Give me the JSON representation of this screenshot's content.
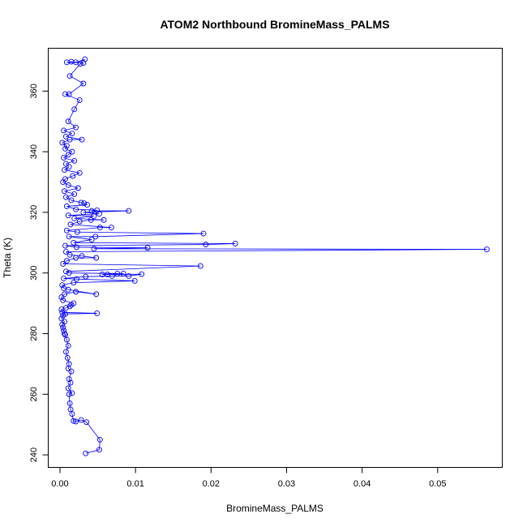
{
  "chart_data": {
    "type": "line",
    "title": "ATOM2 Northbound BromineMass_PALMS",
    "xlabel": "BromineMass_PALMS",
    "ylabel": "Theta (K)",
    "xlim": [
      -0.0015,
      0.0585
    ],
    "ylim": [
      236,
      374
    ],
    "x_ticks": [
      0.0,
      0.01,
      0.02,
      0.03,
      0.04,
      0.05
    ],
    "x_tick_labels": [
      "0.00",
      "0.01",
      "0.02",
      "0.03",
      "0.04",
      "0.05"
    ],
    "y_ticks": [
      240,
      260,
      280,
      300,
      320,
      340,
      360
    ],
    "y_tick_labels": [
      "240",
      "260",
      "280",
      "300",
      "320",
      "340",
      "360"
    ],
    "grid": false,
    "legend": "none",
    "marker": "open-circle",
    "series": [
      {
        "color": "#0000ff",
        "points": [
          [
            0.0034,
            240.5
          ],
          [
            0.0052,
            241.7
          ],
          [
            0.0053,
            245
          ],
          [
            0.0035,
            250.8
          ],
          [
            0.0028,
            251.5
          ],
          [
            0.0021,
            251
          ],
          [
            0.0018,
            251.2
          ],
          [
            0.0016,
            253.5
          ],
          [
            0.0014,
            255
          ],
          [
            0.0013,
            257
          ],
          [
            0.0012,
            260
          ],
          [
            0.0016,
            260.4
          ],
          [
            0.0011,
            262
          ],
          [
            0.0014,
            263.8
          ],
          [
            0.0012,
            265
          ],
          [
            0.0015,
            267.5
          ],
          [
            0.0011,
            268.5
          ],
          [
            0.0012,
            270
          ],
          [
            0.001,
            272
          ],
          [
            0.0008,
            274
          ],
          [
            0.0011,
            276
          ],
          [
            0.0009,
            278
          ],
          [
            0.0006,
            280
          ],
          [
            0.0007,
            279.6
          ],
          [
            0.0005,
            281
          ],
          [
            0.0004,
            282
          ],
          [
            0.0003,
            283
          ],
          [
            0.0006,
            284
          ],
          [
            0.0002,
            285
          ],
          [
            0.0004,
            286
          ],
          [
            0.0007,
            286.5
          ],
          [
            0.0049,
            286.7
          ],
          [
            0.0003,
            287
          ],
          [
            0.0002,
            288
          ],
          [
            0.0008,
            288.5
          ],
          [
            0.0015,
            289.5
          ],
          [
            0.0013,
            289
          ],
          [
            0.0018,
            290
          ],
          [
            0.0004,
            291
          ],
          [
            0.0002,
            292
          ],
          [
            0.0006,
            293
          ],
          [
            0.0021,
            293.8
          ],
          [
            0.0048,
            293
          ],
          [
            0.0011,
            294.5
          ],
          [
            0.0005,
            295
          ],
          [
            0.0003,
            296
          ],
          [
            0.0018,
            296.8
          ],
          [
            0.0099,
            297.4
          ],
          [
            0.0022,
            298
          ],
          [
            0.0005,
            298.2
          ],
          [
            0.0034,
            298.8
          ],
          [
            0.0069,
            299
          ],
          [
            0.0091,
            299
          ],
          [
            0.0108,
            299.6
          ],
          [
            0.0063,
            299.5
          ],
          [
            0.0056,
            299.5
          ],
          [
            0.0076,
            299.8
          ],
          [
            0.0084,
            299.8
          ],
          [
            0.0012,
            300
          ],
          [
            0.0008,
            300.5
          ],
          [
            0.0186,
            302.3
          ],
          [
            0.0004,
            303
          ],
          [
            0.0009,
            304
          ],
          [
            0.0021,
            305
          ],
          [
            0.0048,
            305
          ],
          [
            0.0029,
            305.6
          ],
          [
            0.0013,
            306
          ],
          [
            0.0008,
            307
          ],
          [
            0.0565,
            307.8
          ],
          [
            0.0045,
            308
          ],
          [
            0.0116,
            308.3
          ],
          [
            0.0022,
            308.5
          ],
          [
            0.0007,
            309
          ],
          [
            0.0193,
            309.4
          ],
          [
            0.0232,
            309.7
          ],
          [
            0.0018,
            310
          ],
          [
            0.0042,
            311
          ],
          [
            0.0012,
            312
          ],
          [
            0.0047,
            312
          ],
          [
            0.019,
            313
          ],
          [
            0.0023,
            313.5
          ],
          [
            0.0009,
            314
          ],
          [
            0.0053,
            315
          ],
          [
            0.0068,
            315
          ],
          [
            0.0014,
            316
          ],
          [
            0.0026,
            317
          ],
          [
            0.0041,
            317.5
          ],
          [
            0.0058,
            317.5
          ],
          [
            0.0019,
            318
          ],
          [
            0.0045,
            318.8
          ],
          [
            0.0011,
            319
          ],
          [
            0.0052,
            319.5
          ],
          [
            0.0031,
            320
          ],
          [
            0.0091,
            320.5
          ],
          [
            0.0042,
            320.5
          ],
          [
            0.0049,
            320.7
          ],
          [
            0.0021,
            321
          ],
          [
            0.0009,
            322
          ],
          [
            0.0036,
            322.5
          ],
          [
            0.0032,
            323
          ],
          [
            0.0028,
            323.2
          ],
          [
            0.0015,
            324
          ],
          [
            0.0008,
            325
          ],
          [
            0.0019,
            326
          ],
          [
            0.0006,
            327
          ],
          [
            0.0024,
            328
          ],
          [
            0.0011,
            329
          ],
          [
            0.0004,
            330
          ],
          [
            0.0007,
            331
          ],
          [
            0.0017,
            332
          ],
          [
            0.0026,
            333
          ],
          [
            0.0006,
            334
          ],
          [
            0.0012,
            335
          ],
          [
            0.0008,
            336
          ],
          [
            0.0019,
            337
          ],
          [
            0.0005,
            338
          ],
          [
            0.0011,
            339
          ],
          [
            0.0016,
            340
          ],
          [
            0.0007,
            341
          ],
          [
            0.0009,
            342
          ],
          [
            0.0003,
            343
          ],
          [
            0.0013,
            344
          ],
          [
            0.0029,
            344
          ],
          [
            0.0008,
            345
          ],
          [
            0.0016,
            346
          ],
          [
            0.0005,
            347
          ],
          [
            0.0021,
            348
          ],
          [
            0.0011,
            350
          ],
          [
            0.0019,
            354
          ],
          [
            0.0026,
            357
          ],
          [
            0.0007,
            359
          ],
          [
            0.0012,
            359
          ],
          [
            0.0031,
            362.5
          ],
          [
            0.0013,
            365
          ],
          [
            0.0027,
            369
          ],
          [
            0.0031,
            369.3
          ],
          [
            0.0009,
            369.5
          ],
          [
            0.0015,
            369.7
          ],
          [
            0.0021,
            369.5
          ],
          [
            0.0033,
            370.5
          ]
        ]
      }
    ]
  }
}
